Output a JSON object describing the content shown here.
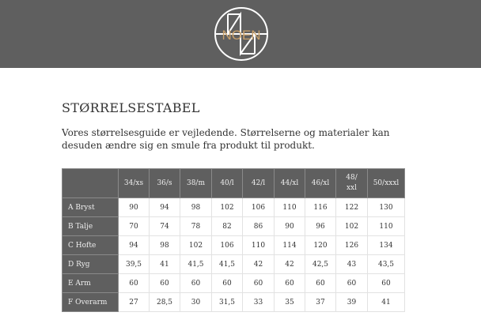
{
  "header": {
    "logo_text": "NOEN",
    "logo_color": "#c8a06a",
    "background": "#5f5f5f"
  },
  "page": {
    "title": "STØRRELSESTABEL",
    "intro": "Vores størrelsesguide er vejledende. Størrelserne og materialer kan desuden ændre sig en smule fra produkt til produkt."
  },
  "table": {
    "columns": [
      "",
      "34/xs",
      "36/s",
      "38/m",
      "40/l",
      "42/l",
      "44/xl",
      "46/xl",
      "48/ xxl",
      "50/xxxl"
    ],
    "rows": [
      {
        "label": "A Bryst",
        "values": [
          "90",
          "94",
          "98",
          "102",
          "106",
          "110",
          "116",
          "122",
          "130"
        ]
      },
      {
        "label": "B Talje",
        "values": [
          "70",
          "74",
          "78",
          "82",
          "86",
          "90",
          "96",
          "102",
          "110"
        ]
      },
      {
        "label": "C Hofte",
        "values": [
          "94",
          "98",
          "102",
          "106",
          "110",
          "114",
          "120",
          "126",
          "134"
        ]
      },
      {
        "label": "D Ryg",
        "values": [
          "39,5",
          "41",
          "41,5",
          "41,5",
          "42",
          "42",
          "42,5",
          "43",
          "43,5"
        ]
      },
      {
        "label": "E Arm",
        "values": [
          "60",
          "60",
          "60",
          "60",
          "60",
          "60",
          "60",
          "60",
          "60"
        ]
      },
      {
        "label": "F Overarm",
        "values": [
          "27",
          "28,5",
          "30",
          "31,5",
          "33",
          "35",
          "37",
          "39",
          "41"
        ]
      }
    ]
  }
}
